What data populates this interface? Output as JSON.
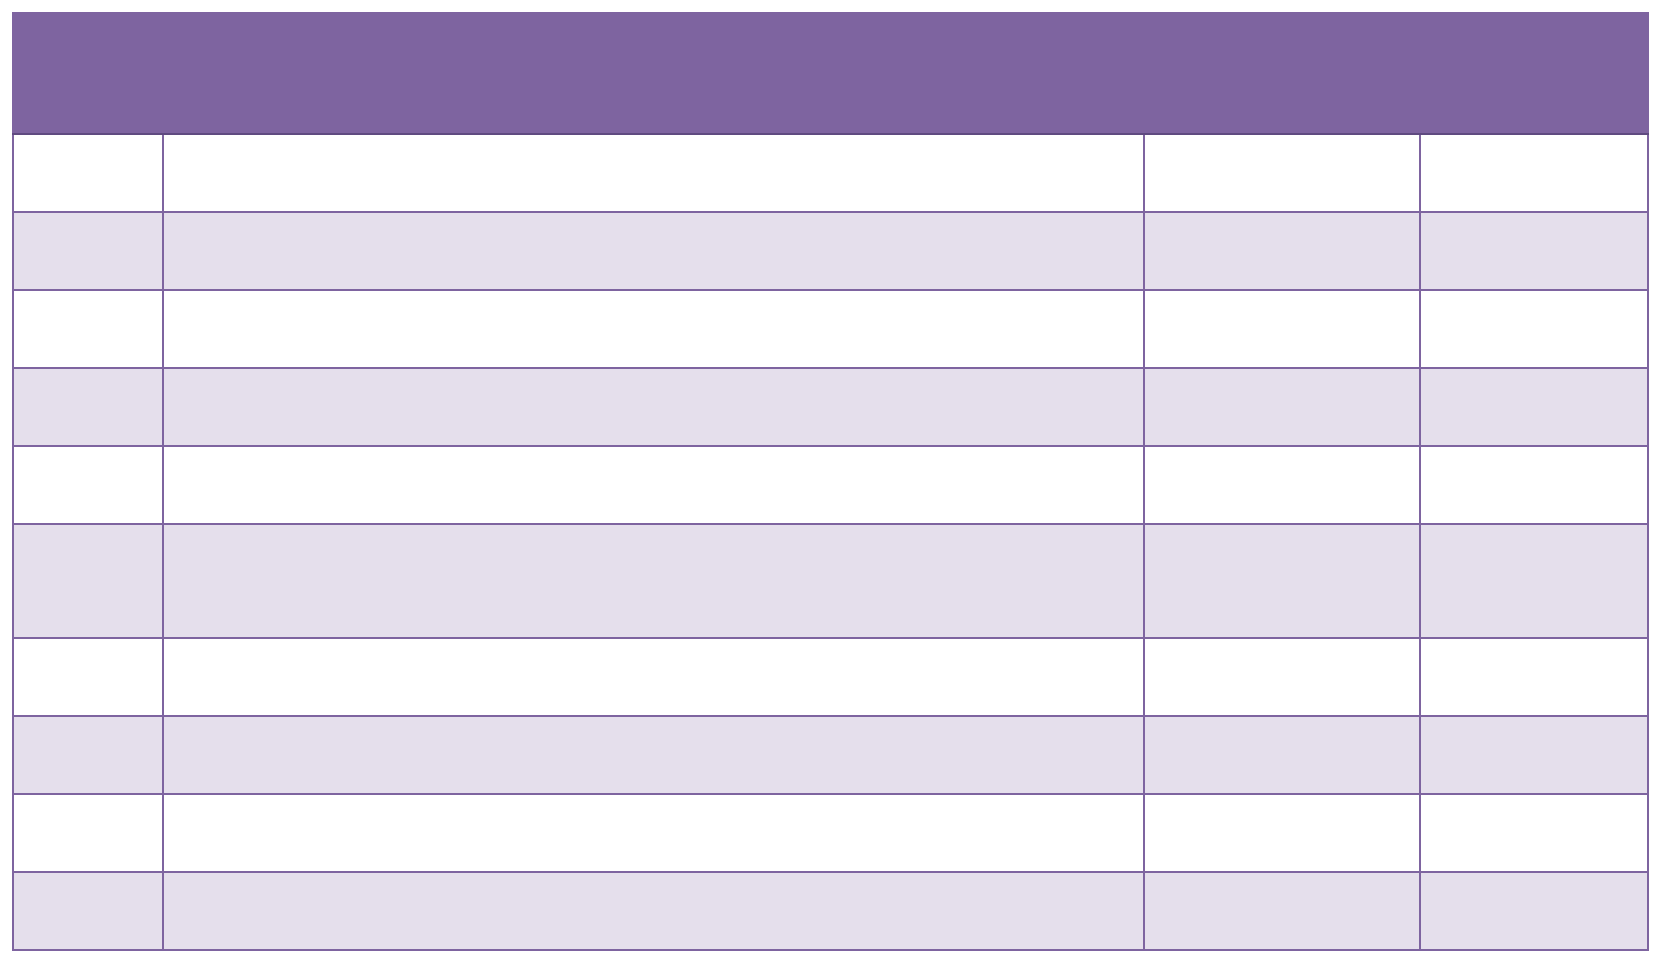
{
  "colors": {
    "header_fill": "#7e64a0",
    "border": "#6a5290",
    "row_band_fill": "#e5dfec",
    "row_plain_fill": "#ffffff"
  },
  "table": {
    "header": "",
    "rows": [
      [
        "",
        "",
        "",
        ""
      ],
      [
        "",
        "",
        "",
        ""
      ],
      [
        "",
        "",
        "",
        ""
      ],
      [
        "",
        "",
        "",
        ""
      ],
      [
        "",
        "",
        "",
        ""
      ],
      [
        "",
        "",
        "",
        ""
      ],
      [
        "",
        "",
        "",
        ""
      ],
      [
        "",
        "",
        "",
        ""
      ],
      [
        "",
        "",
        "",
        ""
      ],
      [
        "",
        "",
        "",
        ""
      ]
    ]
  }
}
